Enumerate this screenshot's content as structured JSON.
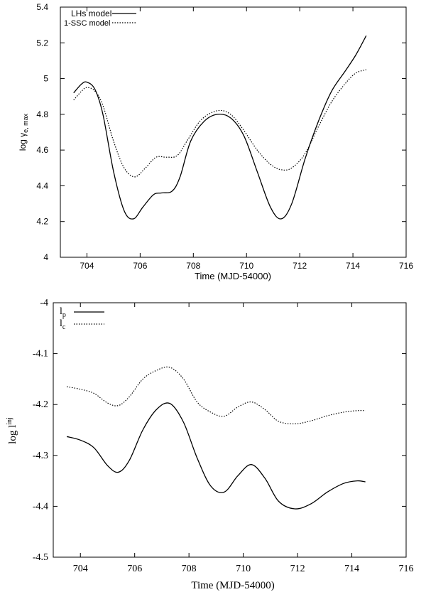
{
  "chart_data": [
    {
      "type": "line",
      "title": "",
      "xlabel": "Time (MJD-54000)",
      "ylabel_main": "log γ",
      "ylabel_sub": "e, max",
      "xlim": [
        703,
        716
      ],
      "ylim": [
        4,
        5.4
      ],
      "xticks": [
        "704",
        "706",
        "708",
        "710",
        "712",
        "714",
        "716"
      ],
      "yticks": [
        "4",
        "4.2",
        "4.4",
        "4.6",
        "4.8",
        "5",
        "5.2",
        "5.4"
      ],
      "legend_position": "top-left",
      "series": [
        {
          "name": "LHs model",
          "style": "solid",
          "x": [
            703.5,
            703.8,
            704.0,
            704.3,
            704.6,
            705.0,
            705.4,
            705.75,
            706.1,
            706.5,
            706.8,
            707.2,
            707.5,
            707.9,
            708.4,
            708.9,
            709.4,
            709.9,
            710.4,
            710.9,
            711.3,
            711.7,
            712.2,
            712.7,
            713.2,
            713.7,
            714.1,
            714.5
          ],
          "values": [
            4.92,
            4.97,
            4.98,
            4.94,
            4.8,
            4.48,
            4.26,
            4.215,
            4.28,
            4.35,
            4.36,
            4.37,
            4.45,
            4.65,
            4.76,
            4.8,
            4.78,
            4.68,
            4.48,
            4.28,
            4.215,
            4.3,
            4.55,
            4.76,
            4.93,
            5.04,
            5.13,
            5.24
          ]
        },
        {
          "name": "1-SSC model",
          "style": "dotted",
          "x": [
            703.5,
            703.8,
            704.0,
            704.3,
            704.6,
            705.0,
            705.4,
            705.8,
            706.2,
            706.6,
            707.0,
            707.4,
            707.8,
            708.3,
            708.9,
            709.4,
            709.9,
            710.4,
            710.9,
            711.3,
            711.7,
            712.2,
            712.7,
            713.2,
            713.7,
            714.1,
            714.5
          ],
          "values": [
            4.88,
            4.93,
            4.95,
            4.93,
            4.85,
            4.65,
            4.5,
            4.45,
            4.5,
            4.56,
            4.56,
            4.57,
            4.66,
            4.77,
            4.82,
            4.8,
            4.71,
            4.6,
            4.52,
            4.49,
            4.5,
            4.58,
            4.73,
            4.87,
            4.97,
            5.03,
            5.05
          ]
        }
      ]
    },
    {
      "type": "line",
      "title": "",
      "xlabel": "Time (MJD-54000)",
      "ylabel_main": "log l",
      "ylabel_sup": "inj",
      "xlim": [
        703,
        716
      ],
      "ylim": [
        -4.5,
        -4.0
      ],
      "xticks": [
        "704",
        "706",
        "708",
        "710",
        "712",
        "714",
        "716"
      ],
      "yticks": [
        "-4",
        "-4.1",
        "-4.2",
        "-4.3",
        "-4.4",
        "-4.5"
      ],
      "legend_position": "top-left",
      "series": [
        {
          "name": "l",
          "sub": "p",
          "style": "solid",
          "x": [
            703.5,
            704.0,
            704.5,
            705.0,
            705.4,
            705.8,
            706.3,
            706.8,
            707.3,
            707.8,
            708.3,
            708.8,
            709.3,
            709.8,
            710.3,
            710.8,
            711.3,
            711.9,
            712.5,
            713.1,
            713.7,
            714.2,
            714.5
          ],
          "values": [
            -4.263,
            -4.27,
            -4.285,
            -4.32,
            -4.333,
            -4.31,
            -4.25,
            -4.21,
            -4.198,
            -4.235,
            -4.305,
            -4.36,
            -4.372,
            -4.34,
            -4.318,
            -4.345,
            -4.39,
            -4.405,
            -4.395,
            -4.372,
            -4.355,
            -4.35,
            -4.352
          ]
        },
        {
          "name": "l",
          "sub": "c",
          "style": "dotted",
          "x": [
            703.5,
            704.0,
            704.5,
            705.0,
            705.4,
            705.8,
            706.3,
            706.8,
            707.3,
            707.8,
            708.3,
            708.8,
            709.3,
            709.8,
            710.3,
            710.8,
            711.3,
            711.9,
            712.5,
            713.1,
            713.7,
            714.2,
            714.5
          ],
          "values": [
            -4.165,
            -4.17,
            -4.178,
            -4.197,
            -4.202,
            -4.185,
            -4.15,
            -4.133,
            -4.127,
            -4.15,
            -4.195,
            -4.215,
            -4.223,
            -4.205,
            -4.195,
            -4.21,
            -4.233,
            -4.238,
            -4.232,
            -4.222,
            -4.215,
            -4.212,
            -4.212
          ]
        }
      ]
    }
  ]
}
